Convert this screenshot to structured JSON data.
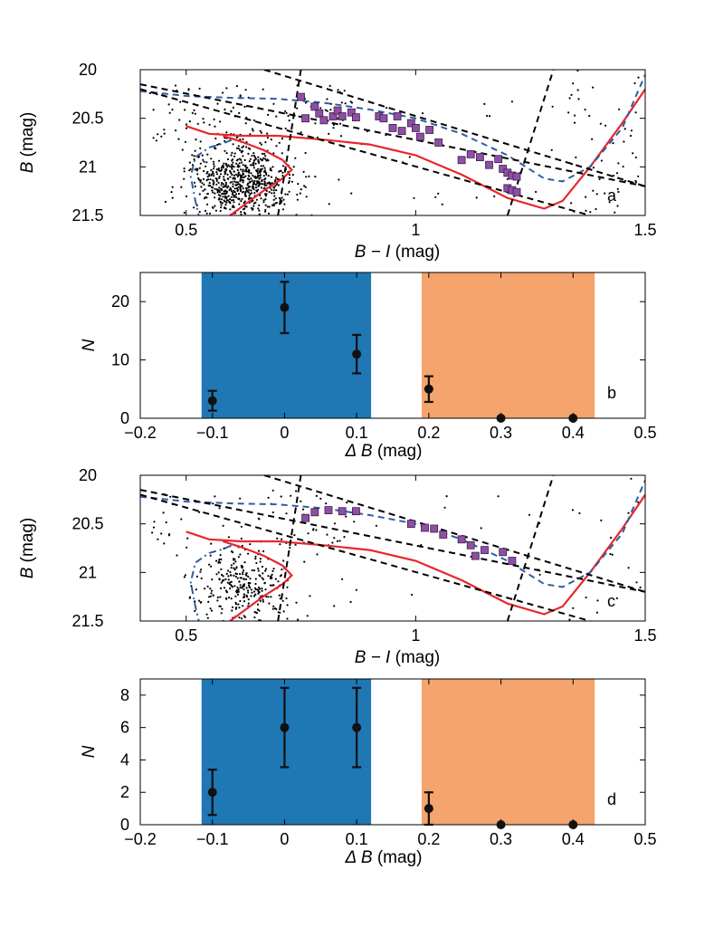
{
  "chart_data": [
    {
      "panel": "a",
      "type": "scatter",
      "xlabel_var": "B − I",
      "xlabel_unit": "(mag)",
      "ylabel_var": "B",
      "ylabel_unit": "(mag)",
      "xlim": [
        0.4,
        1.5
      ],
      "ylim": [
        20,
        21.5
      ],
      "y_inverted": true,
      "xticks": [
        0.5,
        1,
        1.5
      ],
      "xtick_labels": [
        "0.5",
        "1",
        "1.5"
      ],
      "yticks": [
        20,
        20.5,
        21,
        21.5
      ],
      "ytick_labels": [
        "20",
        "20.5",
        "21",
        "21.5"
      ],
      "field_star_count": 900,
      "field_stars_note": "black dots: dense clump near B−I 0.5–0.75, B 20.7–21.5; sparse elsewhere",
      "series": [
        {
          "kind": "markers",
          "marker": "square",
          "color": "#8e4fa5",
          "x": [
            0.75,
            0.76,
            0.78,
            0.79,
            0.8,
            0.82,
            0.83,
            0.84,
            0.86,
            0.87,
            0.92,
            0.93,
            0.95,
            0.96,
            0.97,
            0.99,
            1.0,
            1.01,
            1.03,
            1.05,
            1.1,
            1.12,
            1.14,
            1.16,
            1.18,
            1.19,
            1.2,
            1.21,
            1.22,
            1.2,
            1.21,
            1.22
          ],
          "y": [
            20.28,
            20.5,
            20.38,
            20.45,
            20.52,
            20.48,
            20.42,
            20.48,
            20.44,
            20.49,
            20.48,
            20.5,
            20.6,
            20.48,
            20.63,
            20.55,
            20.6,
            20.69,
            20.62,
            20.75,
            20.93,
            20.87,
            20.9,
            20.98,
            20.92,
            21.02,
            21.06,
            21.09,
            21.1,
            21.22,
            21.24,
            21.26
          ]
        },
        {
          "kind": "line",
          "style": "solid",
          "color": "#e8262d",
          "x": [
            0.5,
            0.55,
            0.62,
            0.7,
            0.8,
            0.9,
            1.0,
            1.1,
            1.2,
            1.28,
            1.32,
            1.38,
            1.45,
            1.5
          ],
          "y": [
            20.58,
            20.66,
            20.68,
            20.68,
            20.72,
            20.77,
            20.88,
            21.08,
            21.32,
            21.43,
            21.35,
            21.0,
            20.55,
            20.2
          ]
        },
        {
          "kind": "line",
          "style": "solid",
          "color": "#e8262d",
          "x": [
            0.59,
            0.63,
            0.67,
            0.71,
            0.73,
            0.71,
            0.67,
            0.62,
            0.58
          ],
          "y": [
            21.52,
            21.38,
            21.24,
            21.12,
            21.03,
            20.93,
            20.83,
            20.74,
            20.68
          ]
        },
        {
          "kind": "line",
          "style": "dashed",
          "color": "#2e5ea3",
          "x": [
            0.4,
            0.5,
            0.6,
            0.7,
            0.8,
            0.9,
            1.0,
            1.1,
            1.2,
            1.28,
            1.32,
            1.38,
            1.45,
            1.5
          ],
          "y": [
            20.22,
            20.27,
            20.29,
            20.3,
            20.34,
            20.41,
            20.5,
            20.66,
            20.88,
            21.12,
            21.15,
            21.0,
            20.6,
            20.05
          ]
        },
        {
          "kind": "line",
          "style": "dashdot",
          "color": "#2e5ea3",
          "x": [
            0.53,
            0.52,
            0.51,
            0.52,
            0.55,
            0.58,
            0.6
          ],
          "y": [
            21.55,
            21.35,
            21.1,
            20.9,
            20.8,
            20.76,
            20.72
          ]
        },
        {
          "kind": "line",
          "style": "dashed",
          "color": "#000000",
          "x": [
            0.4,
            1.5
          ],
          "y": [
            20.15,
            21.2
          ]
        },
        {
          "kind": "line",
          "style": "dashed",
          "color": "#000000",
          "x": [
            0.4,
            1.38
          ],
          "y": [
            20.2,
            21.5
          ]
        },
        {
          "kind": "line",
          "style": "dashed",
          "color": "#000000",
          "x": [
            0.67,
            1.5
          ],
          "y": [
            20.0,
            21.2
          ]
        },
        {
          "kind": "line",
          "style": "dashed",
          "color": "#000000",
          "x": [
            0.7,
            0.75
          ],
          "y": [
            21.5,
            20.0
          ]
        },
        {
          "kind": "line",
          "style": "dashed",
          "color": "#000000",
          "x": [
            1.2,
            1.3
          ],
          "y": [
            21.5,
            20.0
          ]
        }
      ]
    },
    {
      "panel": "b",
      "type": "scatter",
      "xlabel_var": "Δ B",
      "xlabel_unit": "(mag)",
      "ylabel_var": "N",
      "xlim": [
        -0.2,
        0.5
      ],
      "ylim": [
        0,
        25
      ],
      "xticks": [
        -0.2,
        -0.1,
        0,
        0.1,
        0.2,
        0.3,
        0.4,
        0.5
      ],
      "xtick_labels": [
        "−0.2",
        "−0.1",
        "0",
        "0.1",
        "0.2",
        "0.3",
        "0.4",
        "0.5"
      ],
      "yticks": [
        0,
        10,
        20
      ],
      "ytick_labels": [
        "0",
        "10",
        "20"
      ],
      "bands": [
        {
          "x0": -0.115,
          "x1": 0.12,
          "color": "#1f77b4"
        },
        {
          "x0": 0.19,
          "x1": 0.43,
          "color": "#f4a46c"
        }
      ],
      "points": [
        {
          "x": -0.1,
          "y": 3,
          "err": 1.7
        },
        {
          "x": 0.0,
          "y": 19,
          "err": 4.4
        },
        {
          "x": 0.1,
          "y": 11,
          "err": 3.3
        },
        {
          "x": 0.2,
          "y": 5,
          "err": 2.2
        },
        {
          "x": 0.3,
          "y": 0,
          "err": 0
        },
        {
          "x": 0.4,
          "y": 0,
          "err": 0
        }
      ]
    },
    {
      "panel": "c",
      "type": "scatter",
      "xlabel_var": "B − I",
      "xlabel_unit": "(mag)",
      "ylabel_var": "B",
      "ylabel_unit": "(mag)",
      "xlim": [
        0.4,
        1.5
      ],
      "ylim": [
        20,
        21.5
      ],
      "y_inverted": true,
      "xticks": [
        0.5,
        1,
        1.5
      ],
      "xtick_labels": [
        "0.5",
        "1",
        "1.5"
      ],
      "yticks": [
        20,
        20.5,
        21,
        21.5
      ],
      "ytick_labels": [
        "20",
        "20.5",
        "21",
        "21.5"
      ],
      "field_star_count": 420,
      "field_stars_note": "black dots: clump near B−I 0.55–0.7, B 20.9–21.5; sparse elsewhere",
      "series": [
        {
          "kind": "markers",
          "marker": "square",
          "color": "#8e4fa5",
          "x": [
            0.76,
            0.78,
            0.81,
            0.84,
            0.87,
            0.99,
            1.02,
            1.04,
            1.06,
            1.1,
            1.12,
            1.13,
            1.15,
            1.19,
            1.21
          ],
          "y": [
            20.44,
            20.38,
            20.36,
            20.37,
            20.37,
            20.5,
            20.54,
            20.55,
            20.61,
            20.66,
            20.72,
            20.83,
            20.77,
            20.79,
            20.88
          ]
        },
        {
          "kind": "line",
          "style": "solid",
          "color": "#e8262d",
          "x": [
            0.5,
            0.55,
            0.62,
            0.7,
            0.8,
            0.9,
            1.0,
            1.1,
            1.2,
            1.28,
            1.32,
            1.38,
            1.45,
            1.5
          ],
          "y": [
            20.58,
            20.66,
            20.68,
            20.68,
            20.72,
            20.77,
            20.88,
            21.08,
            21.32,
            21.43,
            21.35,
            21.0,
            20.55,
            20.2
          ]
        },
        {
          "kind": "line",
          "style": "solid",
          "color": "#e8262d",
          "x": [
            0.59,
            0.63,
            0.67,
            0.71,
            0.73,
            0.71,
            0.67,
            0.62,
            0.58
          ],
          "y": [
            21.52,
            21.38,
            21.24,
            21.12,
            21.03,
            20.93,
            20.83,
            20.74,
            20.68
          ]
        },
        {
          "kind": "line",
          "style": "dashed",
          "color": "#2e5ea3",
          "x": [
            0.4,
            0.5,
            0.6,
            0.7,
            0.8,
            0.9,
            1.0,
            1.1,
            1.2,
            1.28,
            1.32,
            1.38,
            1.45,
            1.5
          ],
          "y": [
            20.22,
            20.27,
            20.29,
            20.3,
            20.34,
            20.41,
            20.5,
            20.66,
            20.88,
            21.12,
            21.15,
            21.0,
            20.6,
            20.05
          ]
        },
        {
          "kind": "line",
          "style": "dashdot",
          "color": "#2e5ea3",
          "x": [
            0.53,
            0.52,
            0.51,
            0.52,
            0.55,
            0.58,
            0.6
          ],
          "y": [
            21.55,
            21.35,
            21.1,
            20.9,
            20.8,
            20.76,
            20.72
          ]
        },
        {
          "kind": "line",
          "style": "dashed",
          "color": "#000000",
          "x": [
            0.4,
            1.5
          ],
          "y": [
            20.15,
            21.2
          ]
        },
        {
          "kind": "line",
          "style": "dashed",
          "color": "#000000",
          "x": [
            0.4,
            1.38
          ],
          "y": [
            20.2,
            21.5
          ]
        },
        {
          "kind": "line",
          "style": "dashed",
          "color": "#000000",
          "x": [
            0.67,
            1.5
          ],
          "y": [
            20.0,
            21.2
          ]
        },
        {
          "kind": "line",
          "style": "dashed",
          "color": "#000000",
          "x": [
            0.7,
            0.75
          ],
          "y": [
            21.5,
            20.0
          ]
        },
        {
          "kind": "line",
          "style": "dashed",
          "color": "#000000",
          "x": [
            1.2,
            1.3
          ],
          "y": [
            21.5,
            20.0
          ]
        }
      ]
    },
    {
      "panel": "d",
      "type": "scatter",
      "xlabel_var": "Δ B",
      "xlabel_unit": "(mag)",
      "ylabel_var": "N",
      "xlim": [
        -0.2,
        0.5
      ],
      "ylim": [
        0,
        9
      ],
      "xticks": [
        -0.2,
        -0.1,
        0,
        0.1,
        0.2,
        0.3,
        0.4,
        0.5
      ],
      "xtick_labels": [
        "−0.2",
        "−0.1",
        "0",
        "0.1",
        "0.2",
        "0.3",
        "0.4",
        "0.5"
      ],
      "yticks": [
        0,
        2,
        4,
        6,
        8
      ],
      "ytick_labels": [
        "0",
        "2",
        "4",
        "6",
        "8"
      ],
      "bands": [
        {
          "x0": -0.115,
          "x1": 0.12,
          "color": "#1f77b4"
        },
        {
          "x0": 0.19,
          "x1": 0.43,
          "color": "#f4a46c"
        }
      ],
      "points": [
        {
          "x": -0.1,
          "y": 2,
          "err": 1.4
        },
        {
          "x": 0.0,
          "y": 6,
          "err": 2.45
        },
        {
          "x": 0.1,
          "y": 6,
          "err": 2.45
        },
        {
          "x": 0.2,
          "y": 1,
          "err": 1.0
        },
        {
          "x": 0.3,
          "y": 0,
          "err": 0
        },
        {
          "x": 0.4,
          "y": 0,
          "err": 0
        }
      ]
    }
  ]
}
